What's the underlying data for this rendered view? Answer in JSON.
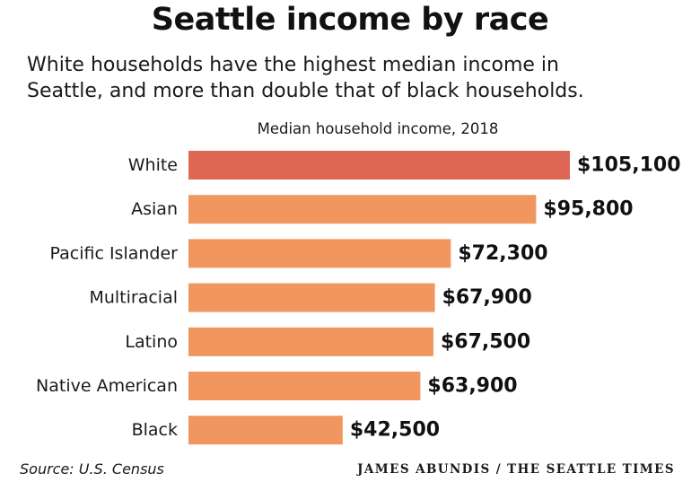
{
  "header": {
    "title": "Seattle income by race",
    "subtitle_line1": "White households have the highest median income in",
    "subtitle_line2": "Seattle, and more than double that of black households."
  },
  "footer": {
    "source": "Source: U.S. Census",
    "credit": "JAMES ABUNDIS / THE SEATTLE TIMES"
  },
  "colors": {
    "highlight": "#DE6654",
    "bar": "#F0965E"
  },
  "chart_data": {
    "type": "bar",
    "orientation": "horizontal",
    "title": "Median household income, 2018",
    "categories": [
      "White",
      "Asian",
      "Pacific Islander",
      "Multiracial",
      "Latino",
      "Native American",
      "Black"
    ],
    "values": [
      105100,
      95800,
      72300,
      67900,
      67500,
      63900,
      42500
    ],
    "value_labels": [
      "$105,100",
      "$95,800",
      "$72,300",
      "$67,900",
      "$67,500",
      "$63,900",
      "$42,500"
    ],
    "highlight_category": "White",
    "xlim": [
      0,
      105100
    ],
    "grid": false,
    "legend": "none"
  }
}
